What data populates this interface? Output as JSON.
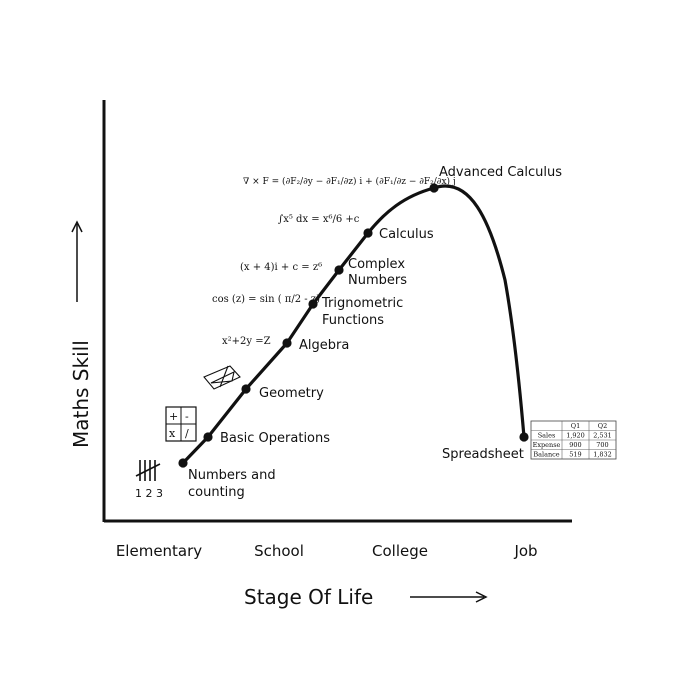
{
  "chart_data": {
    "type": "line",
    "xlabel": "Stage Of Life",
    "ylabel": "Maths Skill",
    "categories": [
      "Elementary",
      "School",
      "College",
      "Job"
    ],
    "grid": false,
    "points": [
      {
        "label": "Numbers and counting",
        "label_lines": [
          "Numbers and",
          "counting"
        ]
      },
      {
        "label": "Basic Operations",
        "label_lines": [
          "Basic Operations"
        ]
      },
      {
        "label": "Geometry",
        "label_lines": [
          "Geometry"
        ]
      },
      {
        "label": "Algebra",
        "label_lines": [
          "Algebra"
        ]
      },
      {
        "label": "Trignometric Functions",
        "label_lines": [
          "Trignometric",
          "Functions"
        ]
      },
      {
        "label": "Complex Numbers",
        "label_lines": [
          "Complex",
          "Numbers"
        ]
      },
      {
        "label": "Calculus",
        "label_lines": [
          "Calculus"
        ]
      },
      {
        "label": "Advanced Calculus",
        "label_lines": [
          "Advanced Calculus"
        ]
      },
      {
        "label": "Spreadsheet",
        "label_lines": [
          "Spreadsheet"
        ]
      }
    ],
    "annotations": {
      "counting": "1 2 3",
      "basic_ops_symbols": [
        "+",
        "-",
        "x",
        "/"
      ],
      "algebra_eq": "x²+2y =Z",
      "trig_eq": "cos (z) = sin ( π/2 - z)",
      "complex_eq": "(x + 4)i + c = z⁶",
      "calculus_eq": "∫x⁵ dx = x⁶/6 +c",
      "curl_eq": "∇ × F = (∂F₂/∂y − ∂F₁/∂z) i + (∂F₁/∂z − ∂F₂/∂x) j"
    },
    "spreadsheet_table": {
      "columns": [
        "",
        "Q1",
        "Q2"
      ],
      "rows": [
        [
          "Sales",
          "1,920",
          "2,531"
        ],
        [
          "Expense",
          "900",
          "700"
        ],
        [
          "Balance",
          "519",
          "1,832"
        ]
      ]
    }
  }
}
